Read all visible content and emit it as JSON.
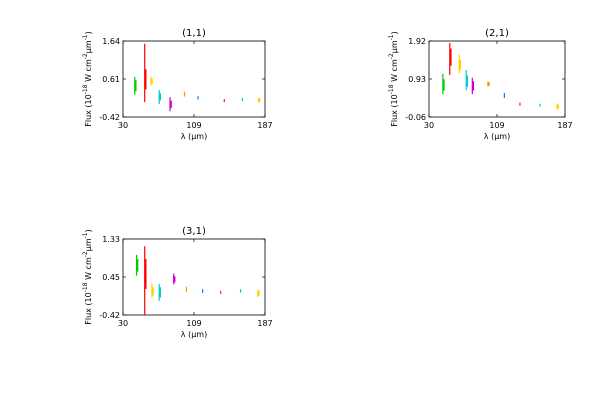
{
  "chart_data": [
    {
      "type": "scatter",
      "title": "(1,1)",
      "xlabel": "λ (μm)",
      "ylabel": "Flux (10$^{-18}$ W cm$^{-2}$μm$^{-1}$)",
      "xlim": [
        30,
        187
      ],
      "ylim": [
        -0.42,
        1.64
      ],
      "xticks": [
        "30",
        "109",
        "187"
      ],
      "yticks": [
        "-0.42",
        "0.61",
        "1.64"
      ],
      "grid": false,
      "series": [
        {
          "color": "#00cc00",
          "x": [
            43,
            44
          ],
          "y_range": [
            [
              0.2,
              0.65
            ],
            [
              0.3,
              0.55
            ]
          ]
        },
        {
          "color": "#ff0000",
          "x": [
            54,
            55
          ],
          "y_range": [
            [
              0.0,
              1.55
            ],
            [
              0.35,
              0.85
            ]
          ]
        },
        {
          "color": "#ffd000",
          "x": [
            61,
            62
          ],
          "y_range": [
            [
              0.45,
              0.65
            ],
            [
              0.5,
              0.6
            ]
          ]
        },
        {
          "color": "#00cccc",
          "x": [
            70,
            71
          ],
          "y_range": [
            [
              -0.05,
              0.3
            ],
            [
              0.05,
              0.2
            ]
          ]
        },
        {
          "color": "#cc00cc",
          "x": [
            82,
            83
          ],
          "y_range": [
            [
              -0.25,
              0.1
            ],
            [
              -0.15,
              0.0
            ]
          ]
        },
        {
          "color": "#ff9900",
          "x": [
            98
          ],
          "y_range": [
            [
              0.15,
              0.25
            ]
          ]
        },
        {
          "color": "#0080ff",
          "x": [
            113
          ],
          "y_range": [
            [
              0.07,
              0.13
            ]
          ]
        },
        {
          "color": "#ff0080",
          "x": [
            142
          ],
          "y_range": [
            [
              0.0,
              0.05
            ]
          ]
        },
        {
          "color": "#00cccc",
          "x": [
            162
          ],
          "y_range": [
            [
              0.03,
              0.08
            ]
          ]
        },
        {
          "color": "#ffd000",
          "x": [
            180,
            181
          ],
          "y_range": [
            [
              -0.02,
              0.08
            ],
            [
              0.02,
              0.06
            ]
          ]
        }
      ]
    },
    {
      "type": "scatter",
      "title": "(2,1)",
      "xlabel": "λ (μm)",
      "ylabel": "Flux (10$^{-18}$ W cm$^{-2}$μm$^{-1}$)",
      "xlim": [
        30,
        187
      ],
      "ylim": [
        -0.06,
        1.92
      ],
      "xticks": [
        "30",
        "109",
        "187"
      ],
      "yticks": [
        "-0.06",
        "0.93",
        "1.92"
      ],
      "grid": false,
      "series": [
        {
          "color": "#00cc00",
          "x": [
            46,
            47
          ],
          "y_range": [
            [
              0.55,
              1.05
            ],
            [
              0.65,
              0.9
            ]
          ]
        },
        {
          "color": "#ff0000",
          "x": [
            54,
            55
          ],
          "y_range": [
            [
              1.05,
              1.85
            ],
            [
              1.3,
              1.7
            ]
          ]
        },
        {
          "color": "#ffd000",
          "x": [
            65,
            66
          ],
          "y_range": [
            [
              1.1,
              1.55
            ],
            [
              1.2,
              1.4
            ]
          ]
        },
        {
          "color": "#00cccc",
          "x": [
            73,
            74
          ],
          "y_range": [
            [
              0.65,
              1.15
            ],
            [
              0.75,
              1.0
            ]
          ]
        },
        {
          "color": "#cc00cc",
          "x": [
            80,
            81
          ],
          "y_range": [
            [
              0.55,
              0.95
            ],
            [
              0.65,
              0.85
            ]
          ]
        },
        {
          "color": "#ff9900",
          "x": [
            98,
            99
          ],
          "y_range": [
            [
              0.75,
              0.85
            ],
            [
              0.77,
              0.83
            ]
          ]
        },
        {
          "color": "#0080ff",
          "x": [
            117
          ],
          "y_range": [
            [
              0.45,
              0.55
            ]
          ]
        },
        {
          "color": "#ff0080",
          "x": [
            135
          ],
          "y_range": [
            [
              0.25,
              0.3
            ]
          ]
        },
        {
          "color": "#00cccc",
          "x": [
            158
          ],
          "y_range": [
            [
              0.22,
              0.27
            ]
          ]
        },
        {
          "color": "#ffd000",
          "x": [
            178,
            179
          ],
          "y_range": [
            [
              0.15,
              0.28
            ],
            [
              0.18,
              0.24
            ]
          ]
        }
      ]
    },
    {
      "type": "scatter",
      "title": "(3,1)",
      "xlabel": "λ (μm)",
      "ylabel": "Flux (10$^{-18}$ W cm$^{-2}$μm$^{-1}$)",
      "xlim": [
        30,
        187
      ],
      "ylim": [
        -0.42,
        1.33
      ],
      "xticks": [
        "30",
        "109",
        "187"
      ],
      "yticks": [
        "-0.42",
        "0.45",
        "1.33"
      ],
      "grid": false,
      "series": [
        {
          "color": "#00cc00",
          "x": [
            45,
            46
          ],
          "y_range": [
            [
              0.5,
              0.95
            ],
            [
              0.6,
              0.85
            ]
          ]
        },
        {
          "color": "#ff0000",
          "x": [
            54,
            55
          ],
          "y_range": [
            [
              -0.42,
              1.15
            ],
            [
              0.2,
              0.85
            ]
          ]
        },
        {
          "color": "#ffd000",
          "x": [
            62,
            63
          ],
          "y_range": [
            [
              0.0,
              0.3
            ],
            [
              0.05,
              0.2
            ]
          ]
        },
        {
          "color": "#00cccc",
          "x": [
            70,
            71
          ],
          "y_range": [
            [
              -0.08,
              0.28
            ],
            [
              0.0,
              0.2
            ]
          ]
        },
        {
          "color": "#cc00cc",
          "x": [
            86,
            87
          ],
          "y_range": [
            [
              0.3,
              0.52
            ],
            [
              0.35,
              0.45
            ]
          ]
        },
        {
          "color": "#ff9900",
          "x": [
            100
          ],
          "y_range": [
            [
              0.12,
              0.22
            ]
          ]
        },
        {
          "color": "#0080ff",
          "x": [
            118
          ],
          "y_range": [
            [
              0.1,
              0.16
            ]
          ]
        },
        {
          "color": "#ff0080",
          "x": [
            138
          ],
          "y_range": [
            [
              0.08,
              0.12
            ]
          ]
        },
        {
          "color": "#00cccc",
          "x": [
            160
          ],
          "y_range": [
            [
              0.11,
              0.16
            ]
          ]
        },
        {
          "color": "#ffd000",
          "x": [
            179,
            180
          ],
          "y_range": [
            [
              0.0,
              0.15
            ],
            [
              0.04,
              0.12
            ]
          ]
        }
      ]
    }
  ]
}
